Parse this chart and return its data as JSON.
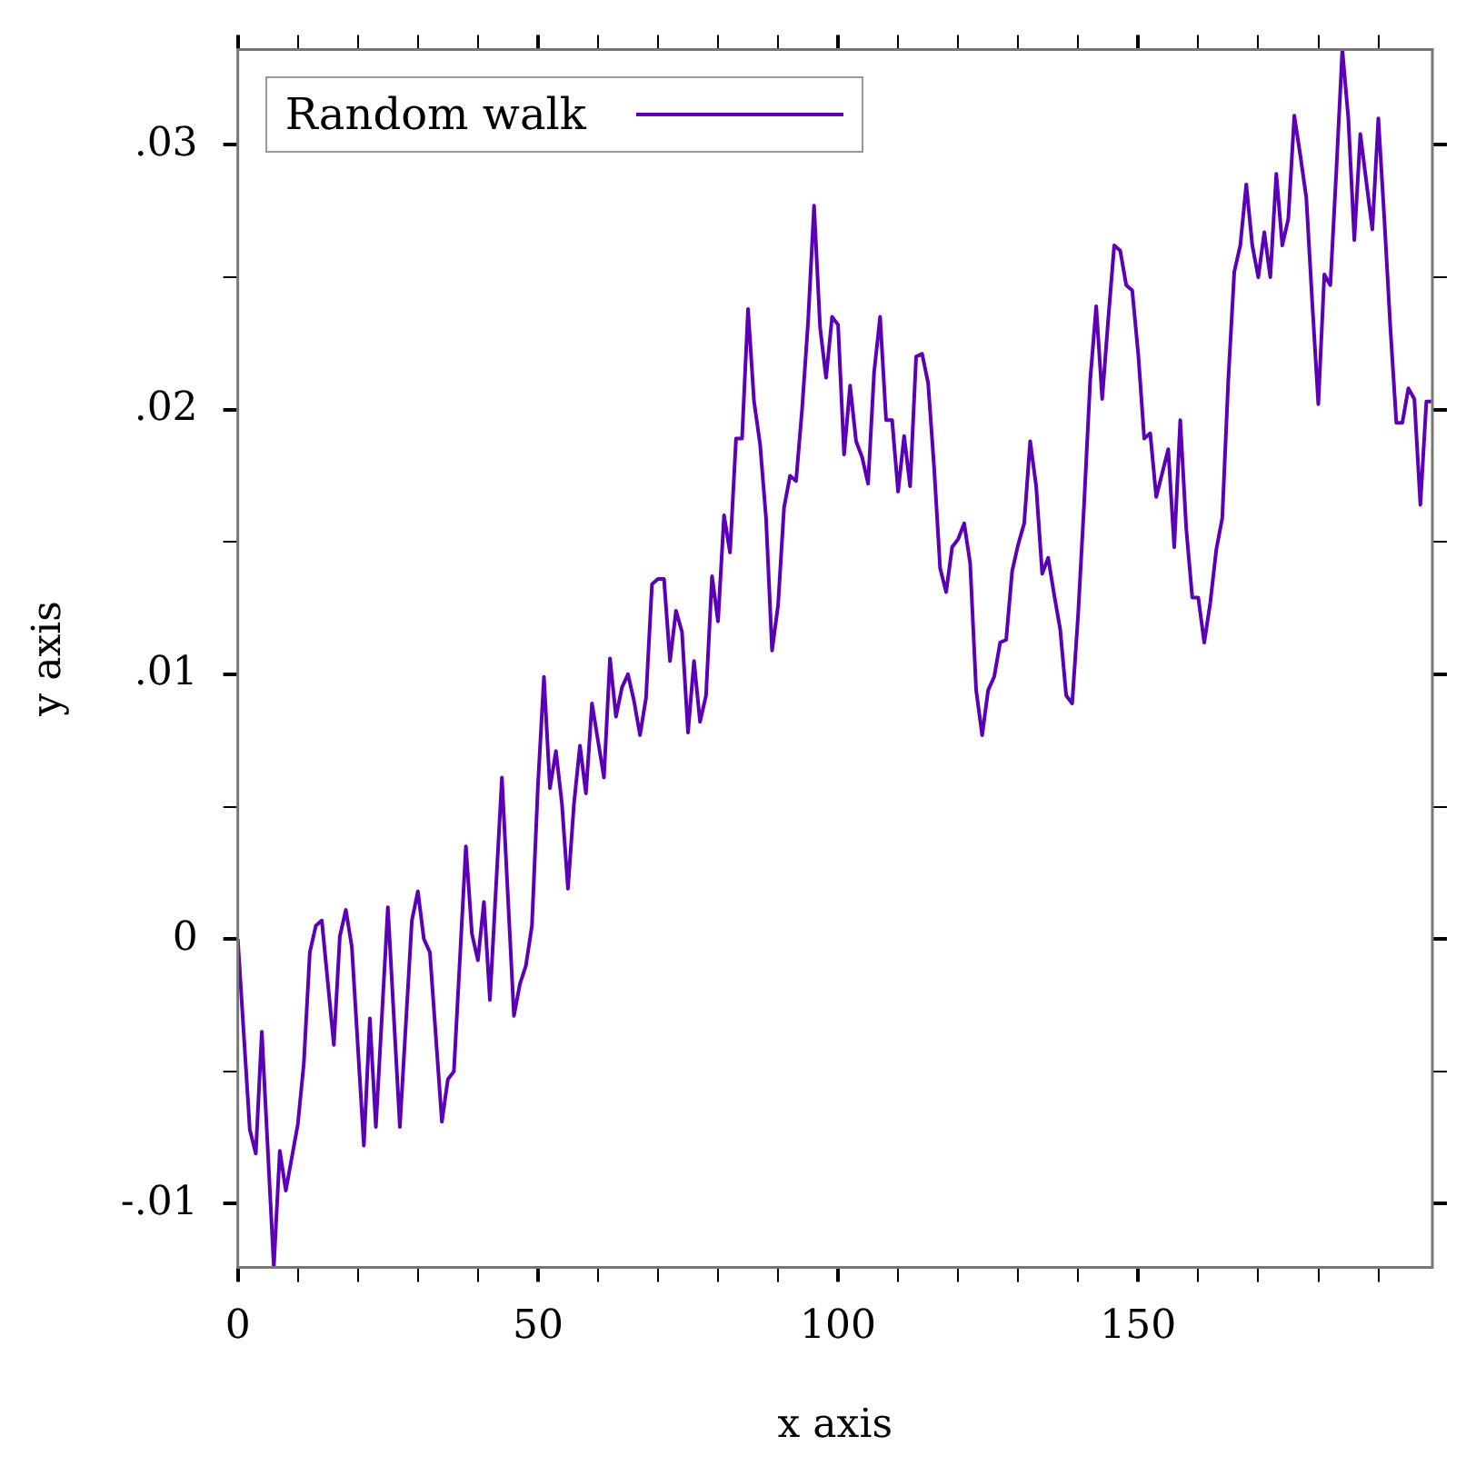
{
  "chart_data": {
    "type": "line",
    "xlabel": "x axis",
    "ylabel": "y axis",
    "series": [
      {
        "name": "Random walk",
        "color": "#5b00b8",
        "x": [
          0,
          2,
          3,
          4,
          6,
          7,
          8,
          10,
          11,
          12,
          13,
          14,
          16,
          17,
          18,
          19,
          21,
          22,
          23,
          25,
          27,
          29,
          30,
          31,
          32,
          34,
          35,
          36,
          38,
          39,
          40,
          41,
          42,
          44,
          46,
          47,
          48,
          49,
          50,
          51,
          52,
          53,
          54,
          55,
          56,
          57,
          58,
          59,
          60,
          61,
          62,
          63,
          64,
          65,
          66,
          67,
          68,
          69,
          70,
          71,
          72,
          73,
          74,
          75,
          76,
          77,
          78,
          79,
          80,
          81,
          82,
          83,
          84,
          85,
          86,
          87,
          88,
          89,
          90,
          91,
          92,
          93,
          94,
          95,
          96,
          97,
          98,
          99,
          100,
          101,
          102,
          103,
          104,
          105,
          106,
          107,
          108,
          109,
          110,
          111,
          112,
          113,
          114,
          115,
          116,
          117,
          118,
          119,
          120,
          121,
          122,
          123,
          124,
          125,
          126,
          127,
          128,
          129,
          130,
          131,
          132,
          133,
          134,
          135,
          136,
          137,
          138,
          139,
          140,
          141,
          142,
          143,
          144,
          145,
          146,
          147,
          148,
          149,
          150,
          151,
          152,
          153,
          154,
          155,
          156,
          157,
          158,
          159,
          160,
          161,
          162,
          163,
          164,
          165,
          166,
          167,
          168,
          169,
          170,
          171,
          172,
          173,
          174,
          175,
          176,
          177,
          178,
          179,
          180,
          181,
          182,
          183,
          184,
          185,
          186,
          187,
          188,
          189,
          190,
          191,
          192,
          193,
          194,
          195,
          196,
          197,
          198,
          199
        ],
        "values": [
          0,
          -0.0072,
          -0.0081,
          -0.0035,
          -0.0124,
          -0.008,
          -0.0095,
          -0.007,
          -0.0047,
          -0.0005,
          0.0005,
          0.0007,
          -0.004,
          0.0001,
          0.0011,
          -0.0003,
          -0.0078,
          -0.003,
          -0.0071,
          0.0012,
          -0.0071,
          0.0007,
          0.0018,
          0,
          -0.0005,
          -0.0069,
          -0.0053,
          -0.005,
          0.0035,
          0.0002,
          -0.0008,
          0.0014,
          -0.0023,
          0.0061,
          -0.0029,
          -0.0017,
          -0.001,
          0.0005,
          0.0058,
          0.0099,
          0.0057,
          0.0071,
          0.0051,
          0.0019,
          0.0051,
          0.0073,
          0.0055,
          0.0089,
          0.0075,
          0.0061,
          0.0106,
          0.0084,
          0.0095,
          0.01,
          0.009,
          0.0077,
          0.0091,
          0.0134,
          0.0136,
          0.0136,
          0.0105,
          0.0124,
          0.0116,
          0.0078,
          0.0105,
          0.0082,
          0.0092,
          0.0137,
          0.012,
          0.016,
          0.0146,
          0.0189,
          0.0189,
          0.0238,
          0.0203,
          0.0187,
          0.0159,
          0.0109,
          0.0126,
          0.0163,
          0.0175,
          0.0173,
          0.02,
          0.0233,
          0.0277,
          0.0231,
          0.0212,
          0.0235,
          0.0232,
          0.0183,
          0.0209,
          0.0188,
          0.0182,
          0.0172,
          0.0214,
          0.0235,
          0.0196,
          0.0196,
          0.0169,
          0.019,
          0.0171,
          0.022,
          0.0221,
          0.021,
          0.0178,
          0.014,
          0.0131,
          0.0148,
          0.0151,
          0.0157,
          0.0142,
          0.0094,
          0.0077,
          0.0094,
          0.0099,
          0.0112,
          0.0113,
          0.0139,
          0.0149,
          0.0157,
          0.0188,
          0.0171,
          0.0138,
          0.0144,
          0.013,
          0.0117,
          0.0092,
          0.0089,
          0.0123,
          0.0165,
          0.0211,
          0.0239,
          0.0204,
          0.0234,
          0.0262,
          0.026,
          0.0247,
          0.0245,
          0.0221,
          0.0189,
          0.0191,
          0.0167,
          0.0176,
          0.0185,
          0.0148,
          0.0196,
          0.0155,
          0.0129,
          0.0129,
          0.0112,
          0.0127,
          0.0147,
          0.0159,
          0.0211,
          0.0252,
          0.0262,
          0.0285,
          0.0262,
          0.025,
          0.0267,
          0.025,
          0.0289,
          0.0262,
          0.0272,
          0.0311,
          0.0296,
          0.028,
          0.024,
          0.0202,
          0.0251,
          0.0247,
          0.029,
          0.0336,
          0.031,
          0.0264,
          0.0304,
          0.0286,
          0.0268,
          0.031,
          0.0272,
          0.0231,
          0.0195,
          0.0195,
          0.0208,
          0.0204,
          0.0164,
          0.0203,
          0.0203
        ]
      }
    ],
    "xlim": [
      0,
      199
    ],
    "ylim": [
      -0.0124,
      0.0336
    ],
    "xticks": [
      0,
      {
        "value": 10,
        "label": null
      },
      {
        "value": 20,
        "label": null
      },
      {
        "value": 30,
        "label": null
      },
      {
        "value": 40,
        "label": null
      },
      50,
      {
        "value": 60,
        "label": null
      },
      {
        "value": 70,
        "label": null
      },
      {
        "value": 80,
        "label": null
      },
      {
        "value": 90,
        "label": null
      },
      100,
      {
        "value": 110,
        "label": null
      },
      {
        "value": 120,
        "label": null
      },
      {
        "value": 130,
        "label": null
      },
      {
        "value": 140,
        "label": null
      },
      150,
      {
        "value": 160,
        "label": null
      },
      {
        "value": 170,
        "label": null
      },
      {
        "value": 180,
        "label": null
      },
      {
        "value": 190,
        "label": null
      }
    ],
    "yticks": [
      {
        "value": -0.01,
        "label": "-.01"
      },
      {
        "value": -0.005,
        "label": null
      },
      0,
      {
        "value": 0.005,
        "label": null
      },
      {
        "value": 0.01,
        "label": ".01"
      },
      {
        "value": 0.015,
        "label": null
      },
      {
        "value": 0.02,
        "label": ".02"
      },
      {
        "value": 0.025,
        "label": null
      },
      {
        "value": 0.03,
        "label": ".03"
      }
    ],
    "grid": false,
    "legend": "top left",
    "marker": "none",
    "line_style": "solid"
  }
}
